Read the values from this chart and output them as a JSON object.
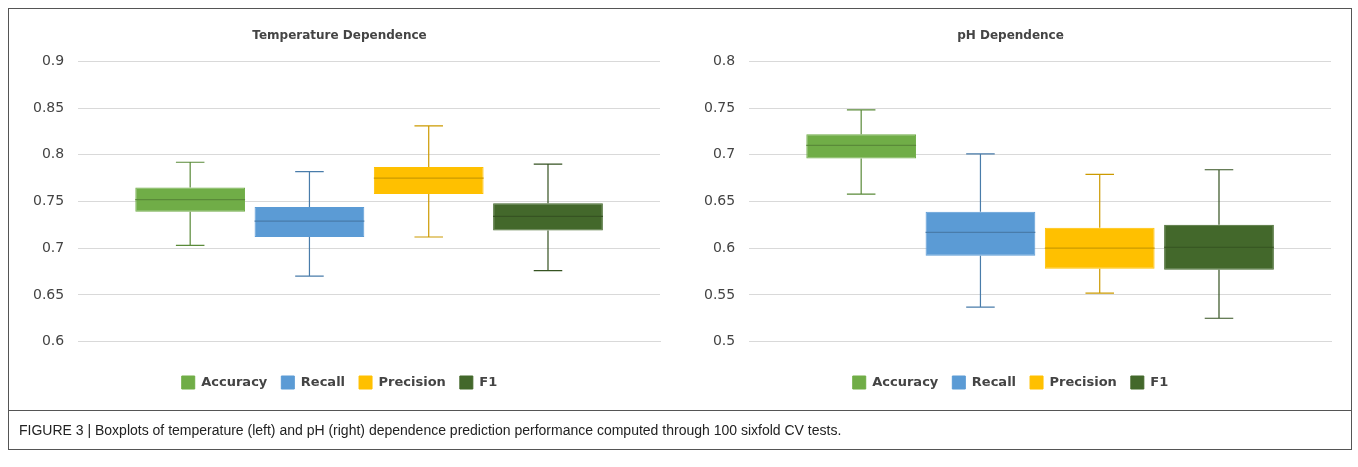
{
  "chart_data": [
    {
      "type": "box",
      "title": "Temperature Dependence",
      "categories": [
        null
      ],
      "ylim": [
        0.6,
        0.9
      ],
      "yticks": [
        0.6,
        0.65,
        0.7,
        0.75,
        0.8,
        0.85,
        0.9
      ],
      "grid": "y",
      "legend": "bottom",
      "annotations": [
        "FIGURE 3 | Boxplots of temperature (left) and pH (right) dependence prediction performance computed through 100 sixfold CV tests."
      ],
      "series": [
        {
          "name": "Accuracy",
          "color": "#70ad47",
          "boxes": [
            {
              "low": 0.703,
              "q1": 0.739,
              "median": 0.752,
              "q3": 0.765,
              "high": 0.792
            }
          ]
        },
        {
          "name": "Recall",
          "color": "#5b9bd5",
          "boxes": [
            {
              "low": 0.67,
              "q1": 0.712,
              "median": 0.729,
              "q3": 0.744,
              "high": 0.782
            }
          ]
        },
        {
          "name": "Precision",
          "color": "#ffc000",
          "boxes": [
            {
              "low": 0.712,
              "q1": 0.758,
              "median": 0.775,
              "q3": 0.787,
              "high": 0.831
            }
          ]
        },
        {
          "name": "F1",
          "color": "#43682b",
          "boxes": [
            {
              "low": 0.676,
              "q1": 0.719,
              "median": 0.734,
              "q3": 0.748,
              "high": 0.79
            }
          ]
        }
      ]
    },
    {
      "type": "box",
      "title": "pH Dependence",
      "categories": [
        null
      ],
      "ylim": [
        0.5,
        0.8
      ],
      "yticks": [
        0.5,
        0.55,
        0.6,
        0.65,
        0.7,
        0.75,
        0.8
      ],
      "grid": "y",
      "legend": "bottom",
      "series": [
        {
          "name": "Accuracy",
          "color": "#70ad47",
          "boxes": [
            {
              "low": 0.658,
              "q1": 0.696,
              "median": 0.71,
              "q3": 0.722,
              "high": 0.748
            }
          ]
        },
        {
          "name": "Recall",
          "color": "#5b9bd5",
          "boxes": [
            {
              "low": 0.537,
              "q1": 0.592,
              "median": 0.617,
              "q3": 0.639,
              "high": 0.701
            }
          ]
        },
        {
          "name": "Precision",
          "color": "#ffc000",
          "boxes": [
            {
              "low": 0.552,
              "q1": 0.578,
              "median": 0.6,
              "q3": 0.622,
              "high": 0.679
            }
          ]
        },
        {
          "name": "F1",
          "color": "#43682b",
          "boxes": [
            {
              "low": 0.525,
              "q1": 0.577,
              "median": 0.601,
              "q3": 0.625,
              "high": 0.684
            }
          ]
        }
      ]
    }
  ]
}
